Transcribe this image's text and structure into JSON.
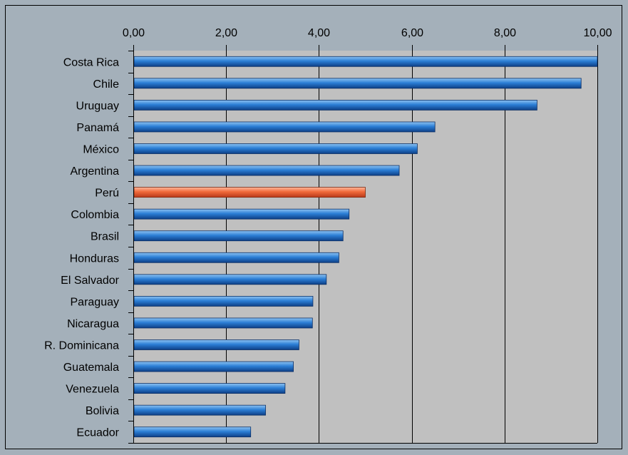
{
  "chart_data": {
    "type": "bar",
    "orientation": "horizontal",
    "categories": [
      "Costa Rica",
      "Chile",
      "Uruguay",
      "Panamá",
      "México",
      "Argentina",
      "Perú",
      "Colombia",
      "Brasil",
      "Honduras",
      "El Salvador",
      "Paraguay",
      "Nicaragua",
      "R. Dominicana",
      "Guatemala",
      "Venezuela",
      "Bolivia",
      "Ecuador"
    ],
    "values": [
      10.0,
      9.65,
      8.7,
      6.5,
      6.12,
      5.73,
      5.0,
      4.65,
      4.52,
      4.43,
      4.16,
      3.87,
      3.86,
      3.57,
      3.45,
      3.27,
      2.85,
      2.53
    ],
    "highlight": "Perú",
    "xlim": [
      0,
      10
    ],
    "xticks": [
      0,
      2,
      4,
      6,
      8,
      10
    ],
    "xtick_labels": [
      "0,00",
      "2,00",
      "4,00",
      "6,00",
      "8,00",
      "10,00"
    ],
    "x_axis_position": "top",
    "grid": "vertical",
    "legend": "none",
    "title": "",
    "xlabel": "",
    "ylabel": "",
    "colors": {
      "background": "#a4b0ba",
      "plot_area": "#c0c0c0",
      "bar": "#1f6fc4",
      "bar_highlight": "#f06a3a",
      "grid": "#000000"
    }
  }
}
